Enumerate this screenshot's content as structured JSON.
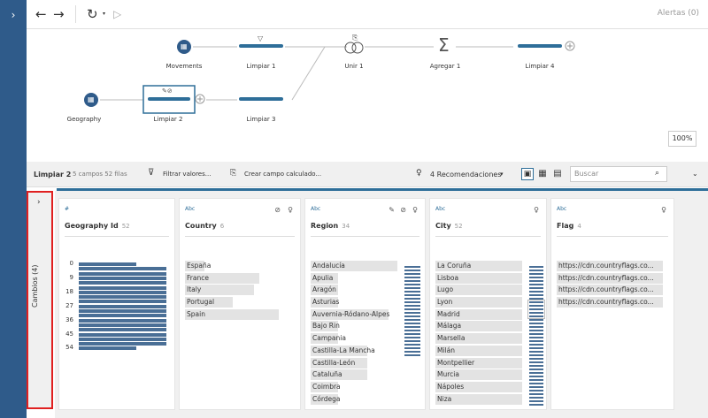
{
  "toolbar": {
    "alerts": "Alertas (0)",
    "back_icon": "←",
    "forward_icon": "→",
    "refresh_icon": "↻",
    "play_icon": "▷"
  },
  "leftbar": {
    "icon": "›"
  },
  "flow": {
    "nodes": [
      {
        "label": "Movements",
        "icon": "table-icon"
      },
      {
        "label": "Limpiar 1",
        "icon": "filter-icon"
      },
      {
        "label": "Unir 1",
        "icon": "join-icon"
      },
      {
        "label": "Agregar 1",
        "icon": "sigma-icon"
      },
      {
        "label": "Limpiar 4",
        "icon": "clean-icon"
      },
      {
        "label": "Geography",
        "icon": "table-icon"
      },
      {
        "label": "Limpiar 2",
        "icon": "clean-icon"
      },
      {
        "label": "Limpiar 3",
        "icon": "clean-icon"
      }
    ],
    "zoom": "100%",
    "sigma": "Σ"
  },
  "stepbar": {
    "title": "Limpiar 2",
    "meta": "5 campos  52 filas",
    "filter": "Filtrar valores...",
    "calc": "Crear campo calculado...",
    "recs": "4 Recomendaciones",
    "search_placeholder": "Buscar"
  },
  "cambios": {
    "label": "Cambios (4)"
  },
  "cards": [
    {
      "type": "#",
      "name": "Geography Id",
      "count": "52",
      "ticks": [
        "0",
        "9",
        "18",
        "27",
        "36",
        "45",
        "54"
      ],
      "histogram": [
        0.6,
        0.92,
        0.92,
        0.92,
        0.92,
        0.92,
        0.92,
        0.92,
        0.92,
        0.92,
        0.92,
        0.92,
        0.92,
        0.92,
        0.92,
        0.92,
        0.92,
        0.92,
        0.6
      ]
    },
    {
      "type": "Abc",
      "name": "Country",
      "count": "6",
      "values": [
        {
          "text": "España",
          "frac": 0.18
        },
        {
          "text": "France",
          "frac": 0.7
        },
        {
          "text": "Italy",
          "frac": 0.65
        },
        {
          "text": "Portugal",
          "frac": 0.45
        },
        {
          "text": "Spain",
          "frac": 0.88
        }
      ]
    },
    {
      "type": "Abc",
      "name": "Region",
      "count": "34",
      "values": [
        {
          "text": "Andalucía",
          "frac": 1.0
        },
        {
          "text": "Apulia",
          "frac": 0.32
        },
        {
          "text": "Aragón",
          "frac": 0.32
        },
        {
          "text": "Asturias",
          "frac": 0.32
        },
        {
          "text": "Auvernia-Ródano-Alpes",
          "frac": 0.9
        },
        {
          "text": "Bajo Rin",
          "frac": 0.32
        },
        {
          "text": "Campania",
          "frac": 0.32
        },
        {
          "text": "Castilla-La Mancha",
          "frac": 0.65
        },
        {
          "text": "Castilla-León",
          "frac": 0.65
        },
        {
          "text": "Cataluña",
          "frac": 0.65
        },
        {
          "text": "Coimbra",
          "frac": 0.32
        },
        {
          "text": "Córdega",
          "frac": 0.32
        }
      ]
    },
    {
      "type": "Abc",
      "name": "City",
      "count": "52",
      "values": [
        {
          "text": "La Coruña",
          "frac": 1.0
        },
        {
          "text": "Lisboa",
          "frac": 1.0
        },
        {
          "text": "Lugo",
          "frac": 1.0
        },
        {
          "text": "Lyon",
          "frac": 1.0
        },
        {
          "text": "Madrid",
          "frac": 1.0
        },
        {
          "text": "Málaga",
          "frac": 1.0
        },
        {
          "text": "Marsella",
          "frac": 1.0
        },
        {
          "text": "Milán",
          "frac": 1.0
        },
        {
          "text": "Montpellier",
          "frac": 1.0
        },
        {
          "text": "Murcia",
          "frac": 1.0
        },
        {
          "text": "Nápoles",
          "frac": 1.0
        },
        {
          "text": "Niza",
          "frac": 1.0
        }
      ]
    },
    {
      "type": "Abc",
      "name": "Flag",
      "count": "4",
      "values": [
        {
          "text": "https://cdn.countryflags.co...",
          "frac": 1.0
        },
        {
          "text": "https://cdn.countryflags.co...",
          "frac": 1.0
        },
        {
          "text": "https://cdn.countryflags.co...",
          "frac": 1.0
        },
        {
          "text": "https://cdn.countryflags.co...",
          "frac": 1.0
        }
      ]
    }
  ]
}
